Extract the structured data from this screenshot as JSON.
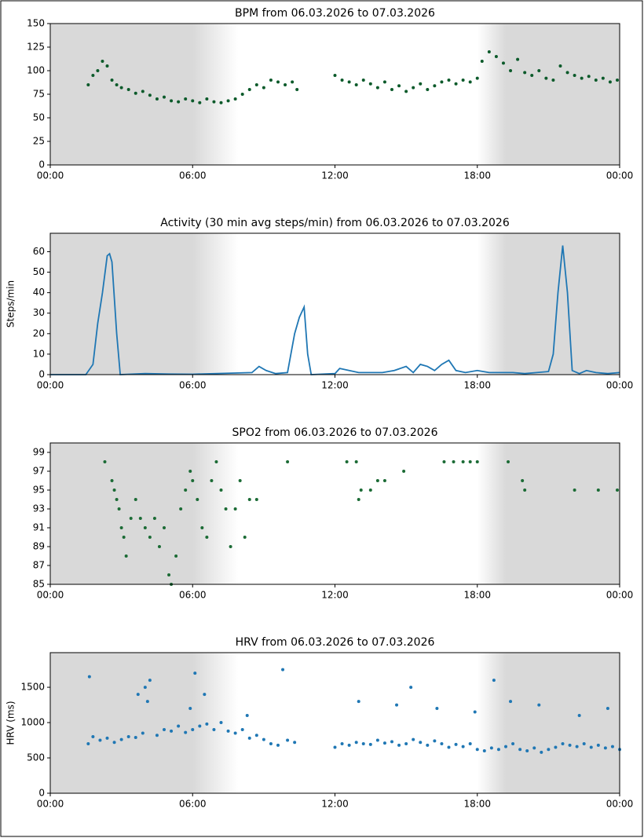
{
  "chart_data": [
    {
      "type": "scatter",
      "title": "BPM from 06.03.2026 to 07.03.2026",
      "color": "#0b5a2a",
      "x": [
        1.6,
        1.8,
        2.0,
        2.2,
        2.4,
        2.6,
        2.8,
        3.0,
        3.3,
        3.6,
        3.9,
        4.2,
        4.5,
        4.8,
        5.1,
        5.4,
        5.7,
        6.0,
        6.3,
        6.6,
        6.9,
        7.2,
        7.5,
        7.8,
        8.1,
        8.4,
        8.7,
        9.0,
        9.3,
        9.6,
        9.9,
        10.2,
        10.4,
        12.0,
        12.3,
        12.6,
        12.9,
        13.2,
        13.5,
        13.8,
        14.1,
        14.4,
        14.7,
        15.0,
        15.3,
        15.6,
        15.9,
        16.2,
        16.5,
        16.8,
        17.1,
        17.4,
        17.7,
        18.0,
        18.2,
        18.5,
        18.8,
        19.1,
        19.4,
        19.7,
        20.0,
        20.3,
        20.6,
        20.9,
        21.2,
        21.5,
        21.8,
        22.1,
        22.4,
        22.7,
        23.0,
        23.3,
        23.6,
        23.9
      ],
      "values": [
        85,
        95,
        100,
        110,
        105,
        90,
        85,
        82,
        80,
        76,
        78,
        74,
        70,
        72,
        68,
        67,
        70,
        68,
        66,
        70,
        67,
        66,
        68,
        70,
        75,
        80,
        85,
        82,
        90,
        88,
        85,
        88,
        80,
        95,
        90,
        88,
        85,
        90,
        86,
        82,
        88,
        80,
        84,
        78,
        82,
        86,
        80,
        84,
        88,
        90,
        86,
        90,
        88,
        92,
        110,
        120,
        115,
        108,
        100,
        112,
        98,
        95,
        100,
        92,
        90,
        105,
        98,
        95,
        92,
        94,
        90,
        92,
        88,
        90
      ],
      "xlim": [
        0,
        24
      ],
      "xticks": [
        {
          "value": 0,
          "label": "00:00"
        },
        {
          "value": 6,
          "label": "06:00"
        },
        {
          "value": 12,
          "label": "12:00"
        },
        {
          "value": 18,
          "label": "18:00"
        },
        {
          "value": 24,
          "label": "00:00"
        }
      ],
      "ylim": [
        0,
        150
      ],
      "yticks": [
        0,
        25,
        50,
        75,
        100,
        125,
        150
      ]
    },
    {
      "type": "line",
      "title": "Activity (30 min avg steps/min) from 06.03.2026 to 07.03.2026",
      "y_label": "Steps/min",
      "color": "#1f77b4",
      "x": [
        0,
        1.5,
        1.8,
        2.0,
        2.2,
        2.4,
        2.5,
        2.6,
        2.8,
        2.95,
        4,
        5,
        6,
        8.5,
        8.8,
        9.1,
        9.5,
        10.0,
        10.3,
        10.5,
        10.7,
        10.85,
        11.0,
        12.0,
        12.2,
        12.6,
        13.0,
        14.0,
        14.5,
        15.0,
        15.3,
        15.6,
        15.9,
        16.2,
        16.5,
        16.8,
        17.1,
        17.5,
        18.0,
        18.5,
        19.0,
        19.5,
        20.0,
        20.5,
        21.0,
        21.2,
        21.4,
        21.6,
        21.8,
        22.0,
        22.3,
        22.6,
        23.0,
        23.5,
        24
      ],
      "values": [
        0,
        0,
        5,
        25,
        40,
        58,
        59,
        55,
        20,
        0,
        0.5,
        0.3,
        0.2,
        1,
        4,
        2,
        0.5,
        1,
        20,
        28,
        33,
        10,
        0,
        0.5,
        3,
        2,
        1,
        1,
        2,
        4,
        1,
        5,
        4,
        2,
        5,
        7,
        2,
        1,
        2,
        1,
        1,
        1,
        0.5,
        1,
        1.5,
        10,
        40,
        63,
        40,
        2,
        0.5,
        2,
        1,
        0.5,
        1
      ],
      "xlim": [
        0,
        24
      ],
      "xticks": [
        {
          "value": 0,
          "label": "00:00"
        },
        {
          "value": 6,
          "label": "06:00"
        },
        {
          "value": 12,
          "label": "12:00"
        },
        {
          "value": 18,
          "label": "18:00"
        },
        {
          "value": 24,
          "label": "00:00"
        }
      ],
      "ylim": [
        0,
        69
      ],
      "yticks": [
        0,
        10,
        20,
        30,
        40,
        50,
        60
      ]
    },
    {
      "type": "scatter",
      "title": "SPO2 from 06.03.2026 to 07.03.2026",
      "color": "#1b6b35",
      "x": [
        2.3,
        2.6,
        2.7,
        2.8,
        2.9,
        3.0,
        3.1,
        3.2,
        3.4,
        3.6,
        3.8,
        4.0,
        4.2,
        4.4,
        4.6,
        4.8,
        5.0,
        5.1,
        5.3,
        5.5,
        5.7,
        5.9,
        6.0,
        6.2,
        6.4,
        6.6,
        6.8,
        7.0,
        7.2,
        7.4,
        7.6,
        7.8,
        8.0,
        8.2,
        8.4,
        8.7,
        10.0,
        12.5,
        12.9,
        13.0,
        13.1,
        13.5,
        13.8,
        14.1,
        14.9,
        16.6,
        17.0,
        17.4,
        17.7,
        18.0,
        19.3,
        19.9,
        20.0,
        22.1,
        23.1,
        23.9
      ],
      "values": [
        98,
        96,
        95,
        94,
        93,
        91,
        90,
        88,
        92,
        94,
        92,
        91,
        90,
        92,
        89,
        91,
        86,
        85,
        88,
        93,
        95,
        97,
        96,
        94,
        91,
        90,
        96,
        98,
        95,
        93,
        89,
        93,
        96,
        90,
        94,
        94,
        98,
        98,
        98,
        94,
        95,
        95,
        96,
        96,
        97,
        98,
        98,
        98,
        98,
        98,
        98,
        96,
        95,
        95,
        95,
        95
      ],
      "xlim": [
        0,
        24
      ],
      "xticks": [
        {
          "value": 0,
          "label": "00:00"
        },
        {
          "value": 6,
          "label": "06:00"
        },
        {
          "value": 12,
          "label": "12:00"
        },
        {
          "value": 18,
          "label": "18:00"
        },
        {
          "value": 24,
          "label": "00:00"
        }
      ],
      "ylim": [
        85,
        100
      ],
      "yticks": [
        85,
        87,
        89,
        91,
        93,
        95,
        97,
        99
      ]
    },
    {
      "type": "scatter",
      "title": "HRV from 06.03.2026 to 07.03.2026",
      "y_label": "HRV (ms)",
      "color": "#1f77b4",
      "x": [
        1.6,
        1.8,
        2.1,
        2.4,
        2.7,
        3.0,
        3.3,
        3.6,
        3.9,
        4.0,
        4.2,
        4.5,
        4.8,
        5.1,
        5.4,
        5.7,
        6.0,
        6.1,
        6.3,
        6.6,
        6.9,
        7.2,
        7.5,
        7.8,
        8.1,
        8.4,
        8.7,
        9.0,
        9.3,
        9.6,
        10.0,
        10.3,
        12.0,
        12.3,
        12.6,
        12.9,
        13.2,
        13.5,
        13.8,
        14.1,
        14.4,
        14.7,
        15.0,
        15.3,
        15.6,
        15.9,
        16.2,
        16.5,
        16.8,
        17.1,
        17.4,
        17.7,
        18.0,
        18.3,
        18.6,
        18.9,
        19.2,
        19.5,
        19.8,
        20.1,
        20.4,
        20.7,
        21.0,
        21.3,
        21.6,
        21.9,
        22.2,
        22.5,
        22.8,
        23.1,
        23.4,
        23.7,
        24.0,
        3.7,
        4.1,
        5.9,
        8.3,
        13.0,
        14.6,
        16.3,
        17.9,
        19.4,
        20.6,
        22.3,
        23.5,
        1.65,
        6.5,
        9.8,
        15.2,
        18.7
      ],
      "values": [
        700,
        800,
        750,
        780,
        720,
        760,
        800,
        790,
        850,
        1500,
        1600,
        820,
        900,
        880,
        950,
        860,
        900,
        1700,
        950,
        980,
        900,
        1000,
        880,
        850,
        900,
        780,
        820,
        760,
        700,
        680,
        750,
        720,
        650,
        700,
        680,
        720,
        700,
        690,
        750,
        710,
        730,
        680,
        700,
        760,
        720,
        680,
        740,
        700,
        650,
        690,
        660,
        700,
        620,
        600,
        640,
        620,
        660,
        700,
        620,
        600,
        640,
        580,
        620,
        650,
        700,
        680,
        660,
        700,
        650,
        680,
        640,
        660,
        620,
        1400,
        1300,
        1200,
        1100,
        1300,
        1250,
        1200,
        1150,
        1300,
        1250,
        1100,
        1200,
        1650,
        1400,
        1750,
        1500,
        1600
      ],
      "xlim": [
        0,
        24
      ],
      "xticks": [
        {
          "value": 0,
          "label": "00:00"
        },
        {
          "value": 6,
          "label": "06:00"
        },
        {
          "value": 12,
          "label": "12:00"
        },
        {
          "value": 18,
          "label": "18:00"
        },
        {
          "value": 24,
          "label": "00:00"
        }
      ],
      "ylim": [
        0,
        1990
      ],
      "yticks": [
        0,
        500,
        1000,
        1500
      ]
    }
  ]
}
